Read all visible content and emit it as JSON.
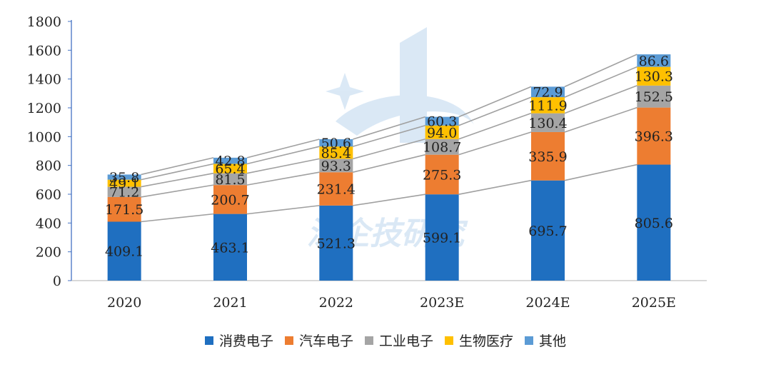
{
  "chart_data": {
    "type": "bar",
    "stacked": true,
    "categories": [
      "2020",
      "2021",
      "2022",
      "2023E",
      "2024E",
      "2025E"
    ],
    "series": [
      {
        "name": "消费电子",
        "color": "#1f6fc0",
        "values": [
          409.1,
          463.1,
          521.3,
          599.1,
          695.7,
          805.6
        ]
      },
      {
        "name": "汽车电子",
        "color": "#ed7d31",
        "values": [
          171.5,
          200.7,
          231.4,
          275.3,
          335.9,
          396.3
        ]
      },
      {
        "name": "工业电子",
        "color": "#a5a5a5",
        "values": [
          71.2,
          81.5,
          93.3,
          108.7,
          130.4,
          152.5
        ]
      },
      {
        "name": "生物医疗",
        "color": "#ffc000",
        "values": [
          49.1,
          65.4,
          85.4,
          94.0,
          111.9,
          130.3
        ]
      },
      {
        "name": "其他",
        "color": "#5b9bd5",
        "values": [
          35.8,
          42.8,
          50.6,
          60.3,
          72.9,
          86.6
        ]
      }
    ],
    "data_labels": [
      [
        "409.1",
        "463.1",
        "521.3",
        "599.1",
        "695.7",
        "805.6"
      ],
      [
        "171.5",
        "200.7",
        "231.4",
        "275.3",
        "335.9",
        "396.3"
      ],
      [
        "71.2",
        "81.5",
        "93.3",
        "108.7",
        "130.4",
        "152.5"
      ],
      [
        "49.1",
        "65.4",
        "85.4",
        "94.0",
        "111.9",
        "130.3"
      ],
      [
        "35.8",
        "42.8",
        "50.6",
        "60.3",
        "72.9",
        "86.6"
      ]
    ],
    "ylim": [
      0,
      1800
    ],
    "yticks": [
      "0",
      "200",
      "400",
      "600",
      "800",
      "1000",
      "1200",
      "1400",
      "1600",
      "1800"
    ],
    "series_lines": true,
    "legend_position": "bottom",
    "title": "",
    "xlabel": "",
    "ylabel": ""
  },
  "watermark_text": "深企技研究"
}
